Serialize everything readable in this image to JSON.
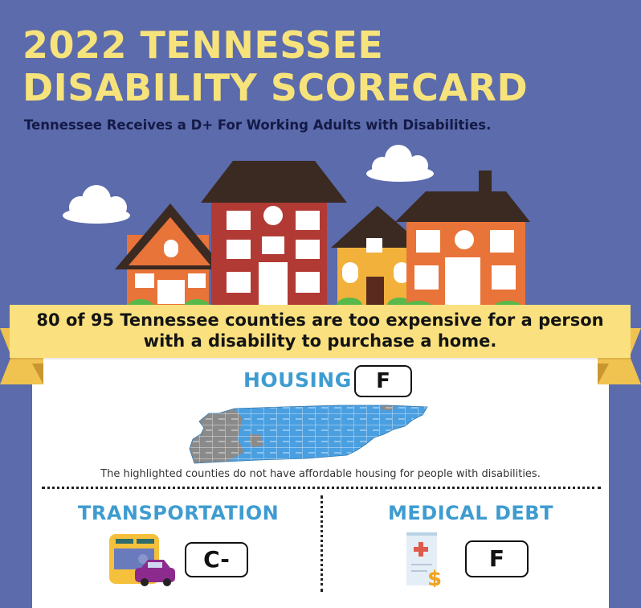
{
  "header": {
    "title_line1": "2022 TENNESSEE",
    "title_line2": "DISABILITY SCORECARD",
    "subtitle": "Tennessee Receives a D+ For Working Adults with Disabilities."
  },
  "banner": {
    "line1": "80 of 95 Tennessee counties are too expensive for a person",
    "line2": "with a disability to purchase a home."
  },
  "housing": {
    "heading": "HOUSING",
    "grade": "F",
    "caption": "The highlighted counties do not have affordable housing for people with disabilities.",
    "counties_highlighted": 80,
    "counties_total": 95
  },
  "transportation": {
    "heading": "TRANSPORTATION",
    "grade": "C-"
  },
  "medical_debt": {
    "heading": "MEDICAL DEBT",
    "grade": "F"
  },
  "colors": {
    "background": "#5b6bab",
    "title_yellow": "#f7e37b",
    "banner_yellow": "#fae07e",
    "heading_blue": "#3e9cd0",
    "map_blue": "#4a9fe0",
    "map_gray": "#8a8a8a"
  },
  "icons": [
    "cloud-icon",
    "house-icon",
    "bus-icon",
    "car-icon",
    "medical-bill-icon",
    "dollar-icon"
  ]
}
